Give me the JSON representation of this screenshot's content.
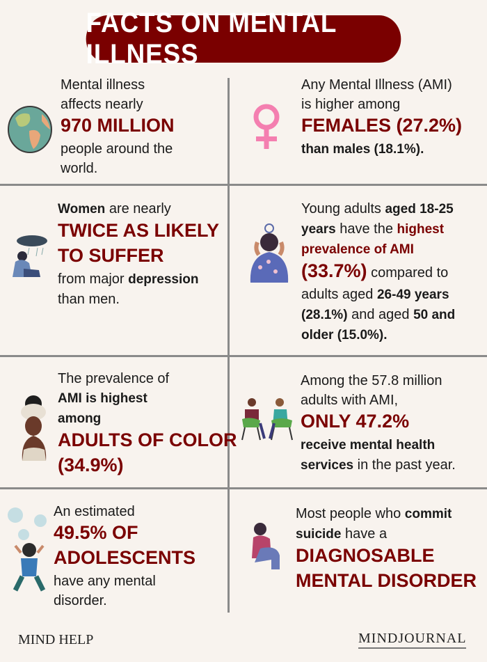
{
  "title": "FACTS ON MENTAL ILLNESS",
  "colors": {
    "accent": "#7a0000",
    "background": "#f8f3ee",
    "divider": "#8a8a8a",
    "female_symbol": "#f47fb0"
  },
  "facts": [
    {
      "icon": "globe-icon",
      "lines": [
        [
          {
            "t": "Mental illness",
            "s": "n"
          }
        ],
        [
          {
            "t": "affects nearly",
            "s": "n"
          }
        ],
        [
          {
            "t": "970 MILLION",
            "s": "big"
          }
        ],
        [
          {
            "t": "people around the",
            "s": "n"
          }
        ],
        [
          {
            "t": "world.",
            "s": "n"
          }
        ]
      ]
    },
    {
      "icon": "female-symbol-icon",
      "lines": [
        [
          {
            "t": "Any Mental Illness (AMI)",
            "s": "n"
          }
        ],
        [
          {
            "t": "is higher among",
            "s": "n"
          }
        ],
        [
          {
            "t": "FEMALES (27.2%)",
            "s": "big"
          }
        ],
        [
          {
            "t": "than males (18.1%).",
            "s": "b"
          }
        ]
      ]
    },
    {
      "icon": "sad-woman-rain-cloud-icon",
      "lines": [
        [
          {
            "t": "Women",
            "s": "b"
          },
          {
            "t": " are nearly",
            "s": "n"
          }
        ],
        [
          {
            "t": "TWICE AS LIKELY",
            "s": "big"
          }
        ],
        [
          {
            "t": "TO SUFFER",
            "s": "big"
          }
        ],
        [
          {
            "t": "from major ",
            "s": "n"
          },
          {
            "t": "depression",
            "s": "b"
          }
        ],
        [
          {
            "t": "than men.",
            "s": "n"
          }
        ]
      ]
    },
    {
      "icon": "stressed-young-adult-icon",
      "lines": [
        [
          {
            "t": "Young adults ",
            "s": "n"
          },
          {
            "t": "aged 18-25",
            "s": "b"
          }
        ],
        [
          {
            "t": "years",
            "s": "b"
          },
          {
            "t": " have the ",
            "s": "n"
          },
          {
            "t": "highest",
            "s": "m"
          }
        ],
        [
          {
            "t": "prevalence of AMI",
            "s": "m"
          }
        ],
        [
          {
            "t": "(33.7%)",
            "s": "big"
          },
          {
            "t": " compared to",
            "s": "n"
          }
        ],
        [
          {
            "t": "adults aged ",
            "s": "n"
          },
          {
            "t": "26-49 years",
            "s": "b"
          }
        ],
        [
          {
            "t": "(28.1%)",
            "s": "b"
          },
          {
            "t": " and aged ",
            "s": "n"
          },
          {
            "t": "50 and",
            "s": "b"
          }
        ],
        [
          {
            "t": "older (15.0%).",
            "s": "b"
          }
        ]
      ]
    },
    {
      "icon": "woman-headwrap-icon",
      "lines": [
        [
          {
            "t": "The prevalence of",
            "s": "n"
          }
        ],
        [
          {
            "t": "AMI is highest",
            "s": "b"
          }
        ],
        [
          {
            "t": "among",
            "s": "b"
          }
        ],
        [
          {
            "t": "ADULTS OF COLOR",
            "s": "big"
          }
        ],
        [
          {
            "t": "(34.9%)",
            "s": "big"
          }
        ]
      ]
    },
    {
      "icon": "therapy-session-icon",
      "lines": [
        [
          {
            "t": "Among the 57.8 million",
            "s": "n"
          }
        ],
        [
          {
            "t": "adults with AMI,",
            "s": "n"
          }
        ],
        [
          {
            "t": "ONLY 47.2%",
            "s": "big"
          }
        ],
        [
          {
            "t": "receive mental health",
            "s": "b"
          }
        ],
        [
          {
            "t": "services",
            "s": "b"
          },
          {
            "t": " in the past year.",
            "s": "n"
          }
        ]
      ]
    },
    {
      "icon": "distressed-adolescent-icon",
      "lines": [
        [
          {
            "t": "An estimated",
            "s": "n"
          }
        ],
        [
          {
            "t": "49.5% OF",
            "s": "big"
          }
        ],
        [
          {
            "t": "ADOLESCENTS",
            "s": "big"
          }
        ],
        [
          {
            "t": "have any mental",
            "s": "n"
          }
        ],
        [
          {
            "t": "disorder.",
            "s": "n"
          }
        ]
      ]
    },
    {
      "icon": "sitting-sad-person-icon",
      "lines": [
        [
          {
            "t": "Most people who ",
            "s": "n"
          },
          {
            "t": "commit",
            "s": "b"
          }
        ],
        [
          {
            "t": "suicide",
            "s": "b"
          },
          {
            "t": " have a",
            "s": "n"
          }
        ],
        [
          {
            "t": "DIAGNOSABLE",
            "s": "big"
          }
        ],
        [
          {
            "t": "MENTAL DISORDER",
            "s": "big"
          }
        ]
      ]
    }
  ],
  "footer": {
    "left_logo": "MIND HELP",
    "right_logo": "MINDJOURNAL"
  }
}
